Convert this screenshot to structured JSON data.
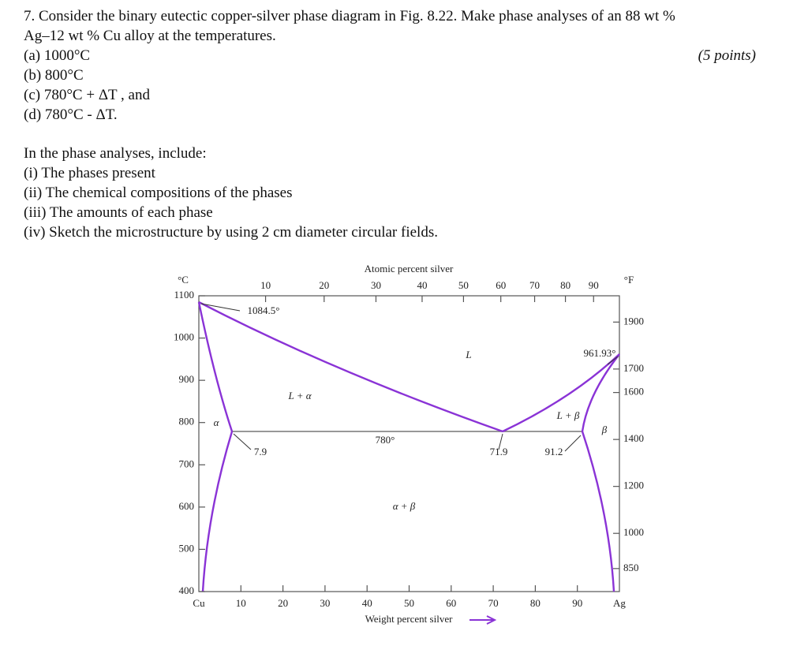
{
  "question": {
    "lines": [
      "7. Consider the binary eutectic copper-silver phase diagram in Fig. 8.22. Make phase analyses of an 88 wt %",
      "Ag–12 wt % Cu alloy at the temperatures.",
      "(a) 1000°C",
      "(b) 800°C",
      "(c) 780°C + ΔT , and",
      "(d) 780°C - ΔT."
    ],
    "points": "(5 points)",
    "include_lines": [
      "In the phase analyses, include:",
      "(i) The phases present",
      "(ii) The chemical compositions of the phases",
      "(iii) The amounts of each phase",
      "(iv) Sketch the microstructure by using 2 cm diameter circular fields."
    ]
  },
  "figure": {
    "top_axis_title": "Atomic percent silver",
    "bottom_axis_title": "Weight percent silver",
    "left_unit": "°C",
    "right_unit": "°F",
    "left_end_label": "Cu",
    "right_end_label": "Ag",
    "atomic_ticks": [
      10,
      20,
      30,
      40,
      50,
      60,
      70,
      80,
      90
    ],
    "weight_ticks": [
      10,
      20,
      30,
      40,
      50,
      60,
      70,
      80,
      90
    ],
    "celsius_ticks": [
      1100,
      1000,
      900,
      800,
      700,
      600,
      500,
      400
    ],
    "fahrenheit_ticks": [
      1900,
      1700,
      1600,
      1400,
      1200,
      1000,
      850
    ],
    "annotations": {
      "cu_melting": "1084.5°",
      "ag_melting": "961.93°",
      "eutectic_temp": "780°",
      "alpha_limit": "7.9",
      "eutectic_comp": "71.9",
      "beta_limit": "91.2"
    },
    "regions": {
      "liquid": "L",
      "liquid_alpha": "L + α",
      "alpha": "α",
      "liquid_beta": "L + β",
      "beta": "β",
      "alpha_beta": "α + β"
    }
  }
}
